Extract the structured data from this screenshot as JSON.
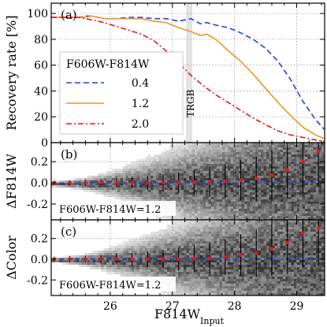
{
  "chart_data": [
    {
      "type": "line",
      "panel_label": "(a)",
      "ylabel": "Recovery rate [%]",
      "xlim": [
        25.05,
        29.45
      ],
      "ylim": [
        0,
        108
      ],
      "yticks": [
        0,
        20,
        40,
        60,
        80,
        100
      ],
      "ytick_labels": [
        "0",
        "20",
        "40",
        "60",
        "80",
        "100"
      ],
      "grid": true,
      "legend_title": "F606W-F814W",
      "legend_placement": "center-left",
      "annotation": {
        "text": "TRGB",
        "x": 27.27,
        "band": [
          27.22,
          27.32
        ],
        "band_color": "#e3e3e3"
      },
      "series": [
        {
          "name": "0.4",
          "color": "#1f3fe0",
          "dash": "dashed",
          "x": [
            25.05,
            25.3,
            25.5,
            25.6,
            25.7,
            25.9,
            26.1,
            26.3,
            26.5,
            26.7,
            26.9,
            27.1,
            27.3,
            27.45,
            27.55,
            27.7,
            27.9,
            28.1,
            28.3,
            28.5,
            28.7,
            28.9,
            29.1,
            29.3,
            29.45
          ],
          "y": [
            97,
            97,
            97,
            98,
            98,
            96,
            96,
            97,
            97,
            96,
            96,
            94,
            96,
            92,
            93,
            91,
            89,
            85,
            80,
            73,
            63,
            49,
            32,
            18,
            10
          ]
        },
        {
          "name": "1.2",
          "color": "#f0961e",
          "dash": "solid",
          "x": [
            25.05,
            25.3,
            25.5,
            25.6,
            25.7,
            25.9,
            26.1,
            26.3,
            26.5,
            26.7,
            26.9,
            27.1,
            27.3,
            27.45,
            27.55,
            27.7,
            27.9,
            28.1,
            28.3,
            28.5,
            28.7,
            28.9,
            29.1,
            29.3,
            29.45
          ],
          "y": [
            97,
            97,
            97,
            97,
            98,
            96,
            96,
            96,
            96,
            94,
            93,
            89,
            86,
            83,
            84,
            80,
            71,
            63,
            53,
            42,
            31,
            21,
            12,
            6,
            3
          ]
        },
        {
          "name": "2.0",
          "color": "#e01a1a",
          "dash": "dashdot",
          "x": [
            25.05,
            25.3,
            25.5,
            25.7,
            25.9,
            26.1,
            26.3,
            26.5,
            26.7,
            26.9,
            27.1,
            27.3,
            27.5,
            27.7,
            27.9,
            28.1,
            28.3,
            28.5,
            28.7,
            28.9,
            29.1,
            29.3,
            29.45
          ],
          "y": [
            97,
            97,
            97,
            95,
            93,
            90,
            87,
            84,
            79,
            71,
            62,
            52,
            44,
            37,
            31,
            25,
            19,
            14,
            9,
            6,
            4,
            2,
            1
          ]
        }
      ]
    },
    {
      "type": "scatter",
      "panel_label": "(b)",
      "ylabel": "ΔF814W",
      "annotation": "F606W-F814W=1.2",
      "xlim": [
        25.05,
        29.45
      ],
      "ylim": [
        -0.35,
        0.38
      ],
      "yticks": [
        -0.2,
        0.0,
        0.2
      ],
      "ytick_labels": [
        "-0.2",
        "0.0",
        "0.2"
      ],
      "grid": true,
      "zero_line_color": "#1f3fe0",
      "points_color": "#e01a1a",
      "x": [
        25.1,
        25.35,
        25.6,
        25.85,
        26.1,
        26.35,
        26.6,
        26.85,
        27.1,
        27.35,
        27.6,
        27.85,
        28.1,
        28.35,
        28.6,
        28.85,
        29.1,
        29.35
      ],
      "y": [
        0.0,
        0.0,
        0.0,
        0.0,
        0.0,
        0.0,
        0.0,
        0.0,
        0.0,
        0.005,
        0.01,
        0.015,
        0.025,
        0.04,
        0.07,
        0.12,
        0.2,
        0.3
      ],
      "err": [
        0.02,
        0.025,
        0.03,
        0.035,
        0.045,
        0.055,
        0.065,
        0.08,
        0.1,
        0.12,
        0.14,
        0.16,
        0.19,
        0.21,
        0.24,
        0.27,
        0.3,
        0.33
      ]
    },
    {
      "type": "scatter",
      "panel_label": "(c)",
      "ylabel": "ΔColor",
      "annotation": "F606W-F814W=1.2",
      "xlabel": "F814W",
      "xlabel_sub": "Input",
      "xlim": [
        25.05,
        29.45
      ],
      "ylim": [
        -0.35,
        0.38
      ],
      "yticks": [
        -0.2,
        0.0,
        0.2
      ],
      "ytick_labels": [
        "-0.2",
        "0.0",
        "0.2"
      ],
      "xticks": [
        26,
        27,
        28,
        29
      ],
      "xtick_labels": [
        "26",
        "27",
        "28",
        "29"
      ],
      "grid": true,
      "zero_line_color": "#1f3fe0",
      "points_color": "#e01a1a",
      "x": [
        25.1,
        25.35,
        25.6,
        25.85,
        26.1,
        26.35,
        26.6,
        26.85,
        27.1,
        27.35,
        27.6,
        27.85,
        28.1,
        28.35,
        28.6,
        28.85,
        29.1,
        29.35
      ],
      "y": [
        0.0,
        0.0,
        0.0,
        0.0,
        0.0,
        0.0,
        0.0,
        0.0,
        0.0,
        0.005,
        0.01,
        0.02,
        0.04,
        0.06,
        0.1,
        0.16,
        0.25,
        0.3
      ],
      "err": [
        0.025,
        0.03,
        0.035,
        0.04,
        0.05,
        0.06,
        0.075,
        0.09,
        0.11,
        0.13,
        0.15,
        0.17,
        0.2,
        0.23,
        0.26,
        0.3,
        0.33,
        0.36
      ]
    }
  ]
}
